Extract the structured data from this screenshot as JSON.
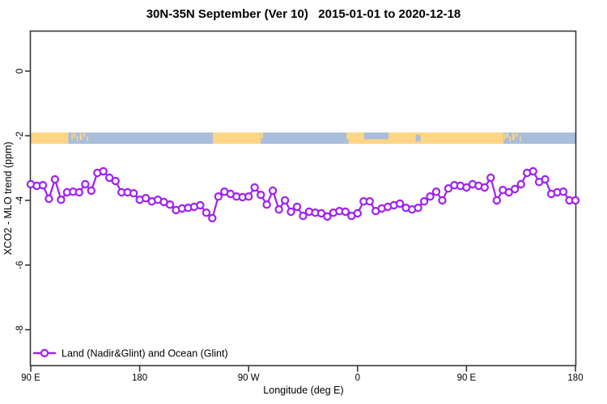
{
  "title": "30N-35N September (Ver 10)   2015-01-01 to 2020-12-18",
  "legend": {
    "label": "Land (Nadir&Glint) and Ocean (Glint)"
  },
  "colors": {
    "series": "#A020F0",
    "marker_fill": "#FFFFFF",
    "land": "#FDD585",
    "ocean": "#A9BEDB",
    "axis": "#383838",
    "text": "#000000",
    "background": "#FFFFFF"
  },
  "chart_data": {
    "type": "line",
    "title": "30N-35N September (Ver 10)   2015-01-01 to 2020-12-18",
    "xlabel": "Longitude (deg E)",
    "ylabel": "XCO2 - MLO trend (ppm)",
    "x_span_deg": 450,
    "x_ticks": [
      {
        "deg": 0,
        "label": "90 E"
      },
      {
        "deg": 90,
        "label": "180"
      },
      {
        "deg": 180,
        "label": "90 W"
      },
      {
        "deg": 270,
        "label": "0"
      },
      {
        "deg": 360,
        "label": "90 E"
      },
      {
        "deg": 450,
        "label": "180"
      }
    ],
    "y_ticks": [
      0,
      -2,
      -4,
      -6,
      -8
    ],
    "ylim": [
      -9.1,
      1.25
    ],
    "grid": false,
    "legend_position": "bottom-left",
    "series": [
      {
        "name": "Land (Nadir&Glint) and Ocean (Glint)",
        "color": "#A020F0",
        "marker": "open-circle",
        "lon_start_deg": 0,
        "lon_step_deg": 5,
        "values": [
          -3.5,
          -3.55,
          -3.53,
          -3.95,
          -3.35,
          -3.98,
          -3.75,
          -3.73,
          -3.75,
          -3.5,
          -3.7,
          -3.15,
          -3.1,
          -3.3,
          -3.4,
          -3.75,
          -3.75,
          -3.78,
          -3.98,
          -3.93,
          -4.03,
          -3.98,
          -4.05,
          -4.13,
          -4.3,
          -4.25,
          -4.23,
          -4.2,
          -4.15,
          -4.38,
          -4.55,
          -3.88,
          -3.73,
          -3.8,
          -3.88,
          -3.9,
          -3.88,
          -3.6,
          -3.83,
          -4.13,
          -3.7,
          -4.28,
          -4.0,
          -4.35,
          -4.2,
          -4.48,
          -4.35,
          -4.38,
          -4.4,
          -4.5,
          -4.38,
          -4.33,
          -4.35,
          -4.48,
          -4.4,
          -4.03,
          -4.03,
          -4.33,
          -4.25,
          -4.2,
          -4.15,
          -4.1,
          -4.23,
          -4.28,
          -4.23,
          -4.03,
          -3.88,
          -3.73,
          -4.0,
          -3.63,
          -3.53,
          -3.55,
          -3.6,
          -3.5,
          -3.55,
          -3.6,
          -3.3,
          -4.0,
          -3.68,
          -3.75,
          -3.65,
          -3.5,
          -3.15,
          -3.1,
          -3.43,
          -3.35,
          -3.8,
          -3.75,
          -3.73,
          -4.0,
          -4.0
        ]
      }
    ],
    "map_band": {
      "description": "land/ocean strip for 30N-35N centered at value -2",
      "value_top": -1.9,
      "value_bottom": -2.25,
      "land_color": "#FDD585",
      "ocean_color": "#A9BEDB",
      "land_segments_deg": [
        [
          0,
          31
        ],
        [
          150.5,
          190.0
        ],
        [
          260.8,
          390.5
        ]
      ],
      "ocean_notches": [
        {
          "d0": 275.5,
          "d1": 295.5,
          "top": 0.0,
          "h": 0.6
        },
        {
          "d0": 318.0,
          "d1": 322.0,
          "top": 0.2,
          "h": 0.6
        },
        {
          "d0": 260.8,
          "d1": 262.5,
          "top": 0.6,
          "h": 0.4
        }
      ],
      "island_specks_deg": [
        {
          "d": 33.5,
          "w": 1.2,
          "top": 0.1,
          "h": 0.5
        },
        {
          "d": 35.5,
          "w": 1.4,
          "top": 0.0,
          "h": 0.45
        },
        {
          "d": 38.0,
          "w": 1.0,
          "top": 0.3,
          "h": 0.5
        },
        {
          "d": 40.5,
          "w": 1.8,
          "top": 0.1,
          "h": 0.55
        },
        {
          "d": 43.5,
          "w": 1.2,
          "top": 0.0,
          "h": 0.4
        },
        {
          "d": 46.5,
          "w": 1.0,
          "top": 0.35,
          "h": 0.45
        },
        {
          "d": 190.4,
          "w": 1.5,
          "top": 0.0,
          "h": 0.5
        },
        {
          "d": 391.0,
          "w": 1.2,
          "top": 0.1,
          "h": 0.5
        },
        {
          "d": 393.0,
          "w": 1.4,
          "top": 0.0,
          "h": 0.45
        },
        {
          "d": 395.5,
          "w": 1.0,
          "top": 0.3,
          "h": 0.5
        },
        {
          "d": 398.0,
          "w": 1.8,
          "top": 0.1,
          "h": 0.55
        },
        {
          "d": 401.0,
          "w": 1.2,
          "top": 0.0,
          "h": 0.4
        },
        {
          "d": 404.0,
          "w": 1.0,
          "top": 0.35,
          "h": 0.45
        }
      ]
    }
  }
}
